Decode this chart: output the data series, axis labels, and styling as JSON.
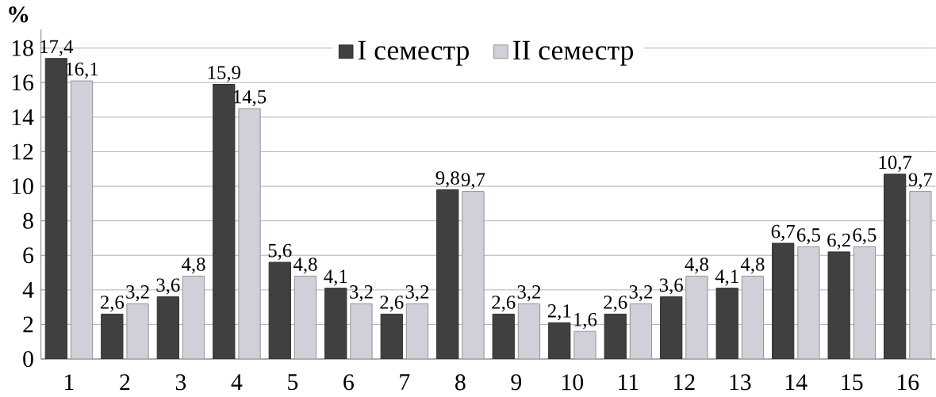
{
  "chart_data": {
    "type": "bar",
    "ylabel": "%",
    "categories": [
      "1",
      "2",
      "3",
      "4",
      "5",
      "6",
      "7",
      "8",
      "9",
      "10",
      "11",
      "12",
      "13",
      "14",
      "15",
      "16"
    ],
    "series": [
      {
        "name": "I семестр",
        "color": "#404040",
        "values": [
          17.4,
          2.6,
          3.6,
          15.9,
          5.6,
          4.1,
          2.6,
          9.8,
          2.6,
          2.1,
          2.6,
          3.6,
          4.1,
          6.7,
          6.2,
          10.7
        ],
        "value_labels": [
          "17,4",
          "2,6",
          "3,6",
          "15,9",
          "5,6",
          "4,1",
          "2,6",
          "9,8",
          "2,6",
          "2,1",
          "2,6",
          "3,6",
          "4,1",
          "6,7",
          "6,2",
          "10,7"
        ]
      },
      {
        "name": "II семестр",
        "color": "#d0d0d8",
        "values": [
          16.1,
          3.2,
          4.8,
          14.5,
          4.8,
          3.2,
          3.2,
          9.7,
          3.2,
          1.6,
          3.2,
          4.8,
          4.8,
          6.5,
          6.5,
          9.7
        ],
        "value_labels": [
          "16,1",
          "3,2",
          "4,8",
          "14,5",
          "4,8",
          "3,2",
          "3,2",
          "9,7",
          "3,2",
          "1,6",
          "3,2",
          "4,8",
          "4,8",
          "6,5",
          "6,5",
          "9,7"
        ]
      }
    ],
    "ylim": [
      0,
      18
    ],
    "yticks": [
      0,
      2,
      4,
      6,
      8,
      10,
      12,
      14,
      16,
      18
    ],
    "grid": "y",
    "legend": "top"
  }
}
